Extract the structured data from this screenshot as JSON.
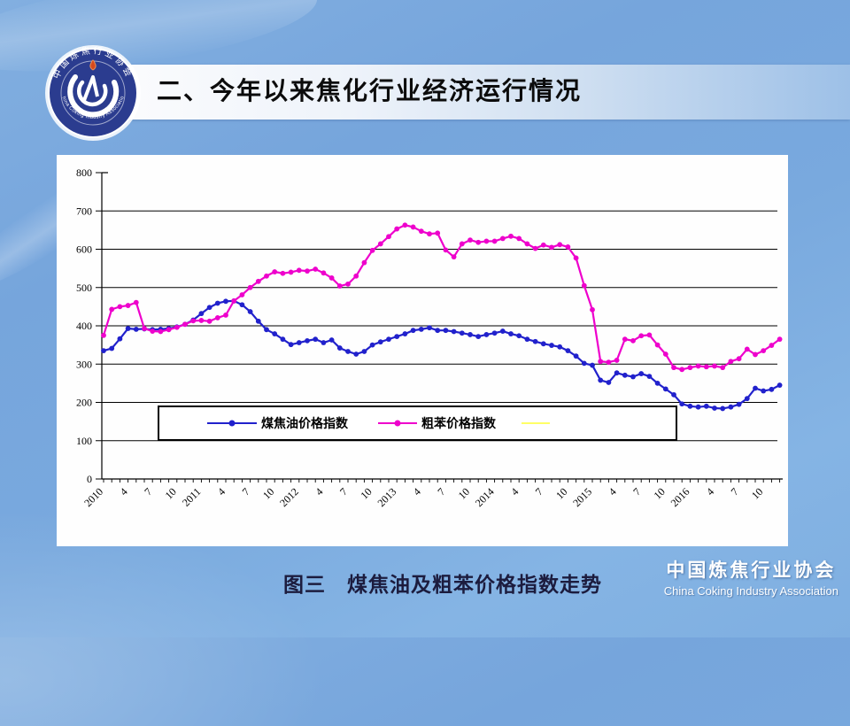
{
  "slide": {
    "title": "二、今年以来焦化行业经济运行情况",
    "caption": "图三　煤焦油及粗苯价格指数走势",
    "brand": {
      "cn": "中国炼焦行业协会",
      "en": "China Coking Industry Association"
    },
    "logo": {
      "ring_cn": "中国炼焦行业协会",
      "ring_en": "China Coking Industry Association"
    }
  },
  "colors": {
    "background": "#79a8dd",
    "banner_left": "#fdfdfe",
    "banner_right": "#9dc0e7",
    "chart_background": "#fefefe",
    "axis": "#000000",
    "series_coal_tar": "#2121cc",
    "series_crude_benzene": "#ee00cc",
    "series_empty": "#ffff66",
    "logo_navy": "#2b3c8f",
    "brand_text": "#ffffff"
  },
  "chart_data": {
    "type": "line",
    "title": "",
    "xlabel": "",
    "ylabel": "",
    "ylim": [
      0,
      800
    ],
    "ytick_step": 100,
    "grid": true,
    "legend_position": "bottom-center-box",
    "x_start": "2010-01",
    "x_end": "2016-12",
    "n_points": 84,
    "x_minor_tick": "monthly",
    "x_label_every_months": 3,
    "x_labels": [
      "2010",
      "4",
      "7",
      "10",
      "2011",
      "4",
      "7",
      "10",
      "2012",
      "4",
      "7",
      "10",
      "2013",
      "4",
      "7",
      "10",
      "2014",
      "4",
      "7",
      "10",
      "2015",
      "4",
      "7",
      "10",
      "2016",
      "4",
      "7",
      "10"
    ],
    "series": [
      {
        "name": "煤焦油价格指数",
        "color": "#2121cc",
        "values": [
          335,
          341,
          366,
          393,
          391,
          392,
          390,
          391,
          393,
          397,
          404,
          415,
          432,
          448,
          459,
          464,
          465,
          455,
          437,
          412,
          390,
          379,
          365,
          351,
          356,
          361,
          365,
          356,
          363,
          342,
          333,
          326,
          333,
          350,
          358,
          365,
          372,
          379,
          388,
          391,
          395,
          388,
          388,
          385,
          381,
          377,
          372,
          377,
          381,
          386,
          379,
          374,
          365,
          359,
          353,
          349,
          345,
          335,
          321,
          302,
          297,
          258,
          252,
          277,
          271,
          267,
          275,
          268,
          250,
          235,
          220,
          196,
          190,
          188,
          190,
          185,
          184,
          188,
          195,
          210,
          237,
          230,
          234,
          245
        ]
      },
      {
        "name": "粗苯价格指数",
        "color": "#ee00cc",
        "values": [
          375,
          443,
          450,
          453,
          461,
          393,
          386,
          385,
          390,
          396,
          404,
          413,
          414,
          412,
          421,
          428,
          465,
          481,
          500,
          516,
          530,
          541,
          537,
          540,
          545,
          543,
          548,
          538,
          525,
          504,
          509,
          530,
          565,
          597,
          614,
          633,
          653,
          663,
          658,
          647,
          640,
          642,
          598,
          580,
          614,
          624,
          618,
          621,
          621,
          628,
          634,
          628,
          614,
          602,
          611,
          605,
          612,
          606,
          577,
          505,
          442,
          307,
          305,
          310,
          365,
          361,
          374,
          376,
          350,
          326,
          291,
          286,
          291,
          295,
          293,
          295,
          291,
          307,
          314,
          339,
          325,
          335,
          349,
          365
        ]
      },
      {
        "name": "",
        "color": "#ffff66",
        "values": []
      }
    ]
  }
}
